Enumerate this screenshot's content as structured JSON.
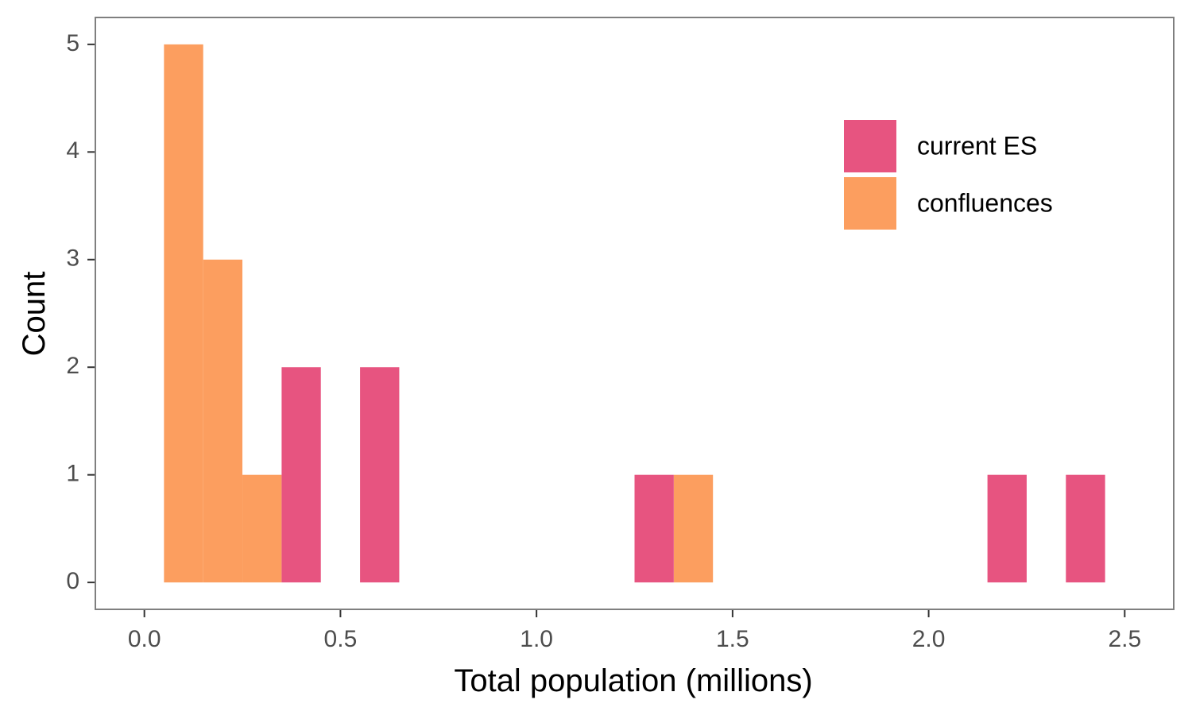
{
  "chart_data": {
    "type": "bar",
    "subtype": "histogram",
    "stacked": true,
    "title": "",
    "xlabel": "Total population (millions)",
    "ylabel": "Count",
    "xlim": [
      -0.125,
      2.625
    ],
    "ylim": [
      -0.25,
      5.25
    ],
    "x_ticks": [
      "0.0",
      "0.5",
      "1.0",
      "1.5",
      "2.0",
      "2.5"
    ],
    "y_ticks": [
      "0",
      "1",
      "2",
      "3",
      "4",
      "5"
    ],
    "bin_width": 0.1,
    "bins": [
      0.1,
      0.2,
      0.3,
      0.4,
      0.6,
      1.3,
      1.4,
      2.2,
      2.4
    ],
    "series": [
      {
        "name": "current ES",
        "color": "#e75480",
        "values": [
          0,
          0,
          0,
          2,
          2,
          1,
          0,
          1,
          1
        ]
      },
      {
        "name": "confluences",
        "color": "#fc9e5f",
        "values": [
          5,
          3,
          1,
          0,
          0,
          0,
          1,
          0,
          0
        ]
      }
    ],
    "grid": false,
    "legend_position": "top-right"
  }
}
